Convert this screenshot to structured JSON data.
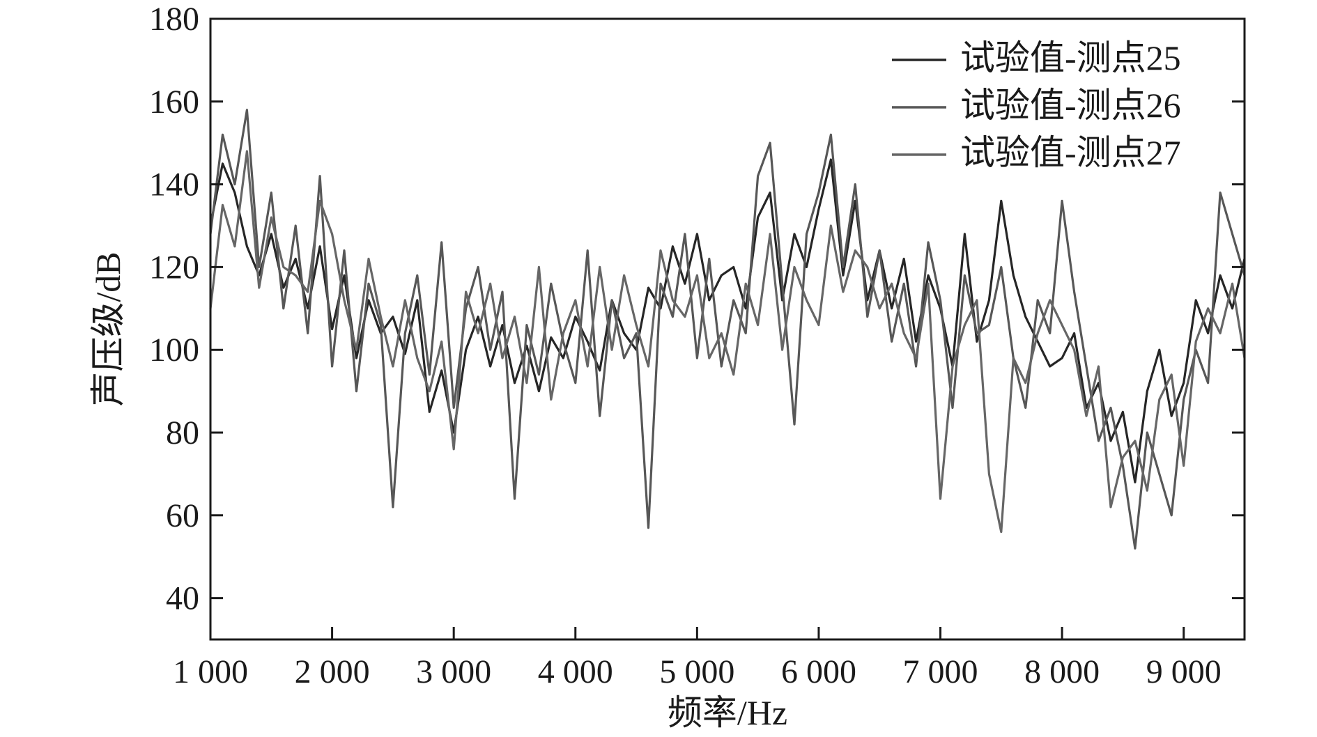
{
  "chart_data": {
    "type": "line",
    "xlabel": "频率/Hz",
    "ylabel": "声压级/dB",
    "xlim": [
      1000,
      9500
    ],
    "ylim": [
      30,
      180
    ],
    "x_ticks": [
      1000,
      2000,
      3000,
      4000,
      5000,
      6000,
      7000,
      8000,
      9000
    ],
    "x_tick_labels": [
      "1 000",
      "2 000",
      "3 000",
      "4 000",
      "5 000",
      "6 000",
      "7 000",
      "8 000",
      "9 000"
    ],
    "y_ticks": [
      40,
      60,
      80,
      100,
      120,
      140,
      160,
      180
    ],
    "y_tick_labels": [
      "40",
      "60",
      "80",
      "100",
      "120",
      "140",
      "160",
      "180"
    ],
    "grid": false,
    "legend_position": "top-right",
    "series": [
      {
        "name": "试验值-测点25",
        "color": "#262626",
        "x": [
          1000,
          1100,
          1200,
          1300,
          1400,
          1500,
          1600,
          1700,
          1800,
          1900,
          2000,
          2100,
          2200,
          2300,
          2400,
          2500,
          2600,
          2700,
          2800,
          2900,
          3000,
          3100,
          3200,
          3300,
          3400,
          3500,
          3600,
          3700,
          3800,
          3900,
          4000,
          4100,
          4200,
          4300,
          4400,
          4500,
          4600,
          4700,
          4800,
          4900,
          5000,
          5100,
          5200,
          5300,
          5400,
          5500,
          5600,
          5700,
          5800,
          5900,
          6000,
          6100,
          6200,
          6300,
          6400,
          6500,
          6600,
          6700,
          6800,
          6900,
          7000,
          7100,
          7200,
          7300,
          7400,
          7500,
          7600,
          7700,
          7800,
          7900,
          8000,
          8100,
          8200,
          8300,
          8400,
          8500,
          8600,
          8700,
          8800,
          8900,
          9000,
          9100,
          9200,
          9300,
          9400,
          9500
        ],
        "values": [
          130,
          145,
          138,
          125,
          118,
          128,
          115,
          122,
          110,
          125,
          105,
          118,
          98,
          112,
          104,
          108,
          99,
          112,
          85,
          95,
          80,
          100,
          108,
          96,
          106,
          92,
          101,
          90,
          103,
          98,
          108,
          102,
          95,
          112,
          104,
          100,
          115,
          110,
          125,
          116,
          128,
          112,
          118,
          120,
          110,
          132,
          138,
          112,
          128,
          120,
          134,
          146,
          118,
          136,
          112,
          124,
          110,
          122,
          102,
          118,
          110,
          96,
          128,
          102,
          112,
          136,
          118,
          108,
          102,
          96,
          98,
          104,
          86,
          92,
          78,
          85,
          68,
          90,
          100,
          84,
          92,
          112,
          104,
          118,
          110,
          122
        ],
        "cdash": ""
      },
      {
        "name": "试验值-测点26",
        "color": "#575757",
        "x": [
          1000,
          1100,
          1200,
          1300,
          1400,
          1500,
          1600,
          1700,
          1800,
          1900,
          2000,
          2100,
          2200,
          2300,
          2400,
          2500,
          2600,
          2700,
          2800,
          2900,
          3000,
          3100,
          3200,
          3300,
          3400,
          3500,
          3600,
          3700,
          3800,
          3900,
          4000,
          4100,
          4200,
          4300,
          4400,
          4500,
          4600,
          4700,
          4800,
          4900,
          5000,
          5100,
          5200,
          5300,
          5400,
          5500,
          5600,
          5700,
          5800,
          5900,
          6000,
          6100,
          6200,
          6300,
          6400,
          6500,
          6600,
          6700,
          6800,
          6900,
          7000,
          7100,
          7200,
          7300,
          7400,
          7500,
          7600,
          7700,
          7800,
          7900,
          8000,
          8100,
          8200,
          8300,
          8400,
          8500,
          8600,
          8700,
          8800,
          8900,
          9000,
          9100,
          9200,
          9300,
          9400,
          9500
        ],
        "values": [
          128,
          152,
          140,
          158,
          120,
          138,
          110,
          130,
          104,
          142,
          96,
          124,
          90,
          116,
          106,
          62,
          104,
          118,
          94,
          126,
          86,
          110,
          120,
          100,
          114,
          64,
          106,
          94,
          116,
          102,
          92,
          124,
          84,
          112,
          98,
          104,
          57,
          116,
          108,
          128,
          98,
          122,
          96,
          112,
          104,
          142,
          150,
          116,
          82,
          128,
          138,
          152,
          120,
          140,
          108,
          124,
          102,
          116,
          96,
          126,
          112,
          86,
          118,
          104,
          106,
          120,
          98,
          86,
          112,
          104,
          136,
          114,
          96,
          78,
          86,
          72,
          52,
          80,
          70,
          60,
          88,
          100,
          92,
          138,
          128,
          118
        ],
        "cdash": ""
      },
      {
        "name": "试验值-测点27",
        "color": "#666666",
        "x": [
          1000,
          1100,
          1200,
          1300,
          1400,
          1500,
          1600,
          1700,
          1800,
          1900,
          2000,
          2100,
          2200,
          2300,
          2400,
          2500,
          2600,
          2700,
          2800,
          2900,
          3000,
          3100,
          3200,
          3300,
          3400,
          3500,
          3600,
          3700,
          3800,
          3900,
          4000,
          4100,
          4200,
          4300,
          4400,
          4500,
          4600,
          4700,
          4800,
          4900,
          5000,
          5100,
          5200,
          5300,
          5400,
          5500,
          5600,
          5700,
          5800,
          5900,
          6000,
          6100,
          6200,
          6300,
          6400,
          6500,
          6600,
          6700,
          6800,
          6900,
          7000,
          7100,
          7200,
          7300,
          7400,
          7500,
          7600,
          7700,
          7800,
          7900,
          8000,
          8100,
          8200,
          8300,
          8400,
          8500,
          8600,
          8700,
          8800,
          8900,
          9000,
          9100,
          9200,
          9300,
          9400,
          9500
        ],
        "values": [
          110,
          135,
          125,
          148,
          115,
          132,
          120,
          118,
          114,
          136,
          128,
          112,
          100,
          122,
          108,
          96,
          112,
          98,
          90,
          102,
          76,
          114,
          104,
          116,
          98,
          108,
          92,
          120,
          88,
          104,
          112,
          96,
          120,
          100,
          118,
          106,
          96,
          124,
          112,
          108,
          118,
          98,
          104,
          94,
          116,
          106,
          128,
          100,
          120,
          112,
          106,
          130,
          114,
          124,
          120,
          110,
          116,
          104,
          98,
          116,
          64,
          96,
          106,
          112,
          70,
          56,
          98,
          92,
          104,
          112,
          106,
          100,
          84,
          96,
          62,
          74,
          78,
          66,
          88,
          94,
          72,
          102,
          110,
          104,
          116,
          98
        ],
        "cdash": ""
      }
    ]
  }
}
